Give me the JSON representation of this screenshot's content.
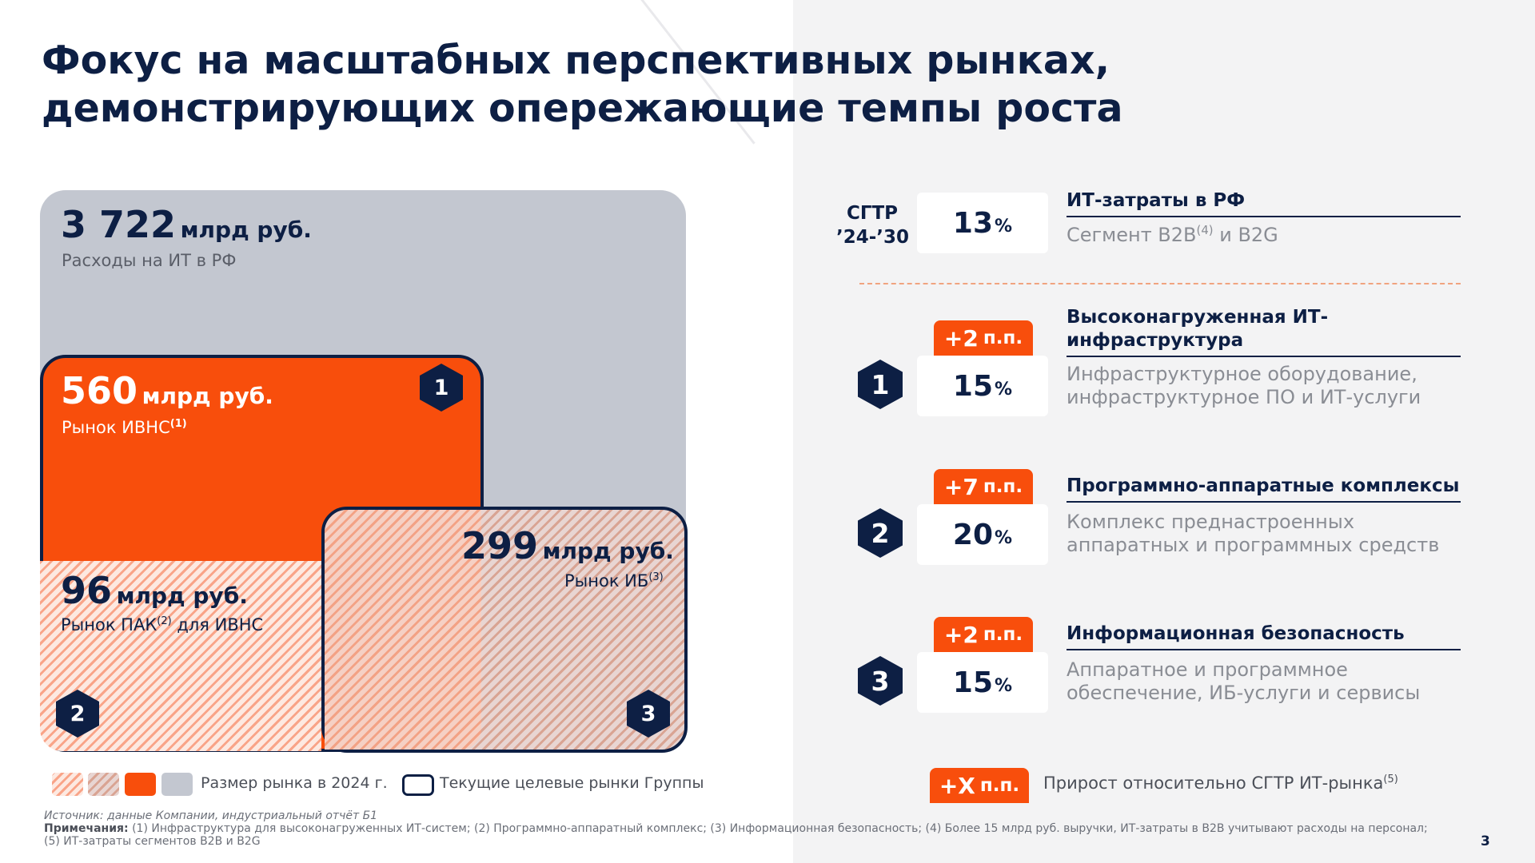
{
  "title": {
    "line1": "Фокус на масштабных перспективных рынках,",
    "line2": "демонстрирующих опережающие темпы роста"
  },
  "markets": {
    "total": {
      "value": "3 722",
      "unit": "млрд руб.",
      "caption": "Расходы на ИТ в РФ"
    },
    "ivns": {
      "value": "560",
      "unit": "млрд руб.",
      "caption": "Рынок ИВНС",
      "note": "(1)",
      "badge": "1"
    },
    "pak": {
      "value": "96",
      "unit": "млрд руб.",
      "caption_a": "Рынок ПАК",
      "note": "(2)",
      "caption_b": " для ИВНС",
      "badge": "2"
    },
    "ib": {
      "value": "299",
      "unit": "млрд руб.",
      "caption": "Рынок ИБ",
      "note": "(3)",
      "badge": "3"
    }
  },
  "legend": {
    "size_label": "Размер рынка в 2024 г.",
    "target_label": "Текущие целевые рынки Группы",
    "growth_badge_main": "+X",
    "growth_badge_unit": "п.п.",
    "growth_label": "Прирост относительно СГТР ИТ-рынка",
    "growth_note": "(5)"
  },
  "cagr": {
    "label_line1": "СГТР",
    "label_line2": "’24-’30",
    "percent_sign": "%",
    "it": {
      "value": "13",
      "title": "ИТ-затраты в РФ",
      "desc_a": "Сегмент B2B",
      "desc_note": "(4)",
      "desc_b": " и B2G"
    },
    "segments": [
      {
        "badge": "1",
        "delta": "+2",
        "delta_unit": "п.п.",
        "value": "15",
        "title_line1": "Высоконагруженная ИТ-",
        "title_line2": "инфраструктура",
        "desc_line1": "Инфраструктурное оборудование,",
        "desc_line2": "инфраструктурное ПО и ИТ-услуги"
      },
      {
        "badge": "2",
        "delta": "+7",
        "delta_unit": "п.п.",
        "value": "20",
        "title": "Программно-аппаратные комплексы",
        "desc_line1": "Комплекс преднастроенных",
        "desc_line2": "аппаратных и программных средств"
      },
      {
        "badge": "3",
        "delta": "+2",
        "delta_unit": "п.п.",
        "value": "15",
        "title": "Информационная безопасность",
        "desc_line1": "Аппаратное и программное",
        "desc_line2": "обеспечение, ИБ-услуги и сервисы"
      }
    ]
  },
  "footer": {
    "source": "Источник: данные Компании, индустриальный отчёт Б1",
    "notes_label": "Примечания:",
    "notes_text": " (1) Инфраструктура для высоконагруженных ИТ-систем; (2) Программно-аппаратный комплекс; (3) Информационная безопасность; (4) Более 15 млрд руб. выручки, ИТ-затраты в B2B учитывают расходы на персонал;",
    "notes_line2": "(5) ИТ-затраты сегментов B2B и B2G"
  },
  "page_number": "3",
  "colors": {
    "navy": "#0d1f44",
    "orange": "#f84e0c",
    "gray": "#c3c7d0",
    "light_bg": "#f3f3f4"
  }
}
